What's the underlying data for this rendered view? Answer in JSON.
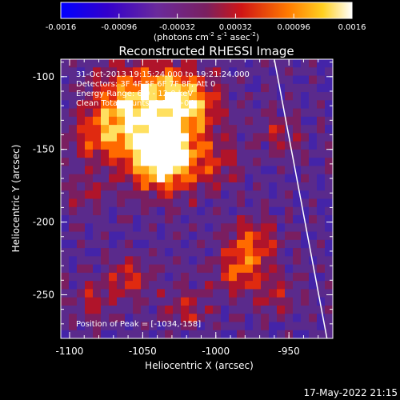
{
  "colorbar": {
    "ticks": [
      "-0.0016",
      "-0.00096",
      "-0.00032",
      "0.00032",
      "0.00096",
      "0.0016"
    ],
    "units_main": "(photons cm",
    "units_sup1": "-2",
    "units_mid1": " s",
    "units_sup2": "-1",
    "units_mid2": " asec",
    "units_sup3": "-2",
    "units_end": ")"
  },
  "chart_data": {
    "type": "heatmap",
    "title": "Reconstructed RHESSI Image",
    "xlabel": "Heliocentric X (arcsec)",
    "ylabel": "Heliocentric Y (arcsec)",
    "xlim": [
      -1106,
      -920
    ],
    "ylim": [
      -280,
      -88
    ],
    "x_ticks": [
      -1100,
      -1050,
      -1000,
      -950
    ],
    "y_ticks": [
      -100,
      -150,
      -200,
      -250
    ],
    "value_range": [
      -0.0016,
      0.0016
    ],
    "annotations": [
      "31-Oct-2013 19:15:24.000 to 19:21:24.000",
      "Detectors: 3F 4F 5F 6F 7F 8F, Att 0",
      "Energy Range: 6.0 - 12.0 keV",
      "Clean     Total counts: 3.51E+04"
    ],
    "peak_label": "Position of Peak = [-1034,-158]",
    "peak": [
      -1034,
      -158
    ],
    "limb_line": [
      [
        -960,
        -88
      ],
      [
        -924,
        -280
      ]
    ]
  },
  "footer": {
    "date": "17-May-2022 21:15"
  }
}
